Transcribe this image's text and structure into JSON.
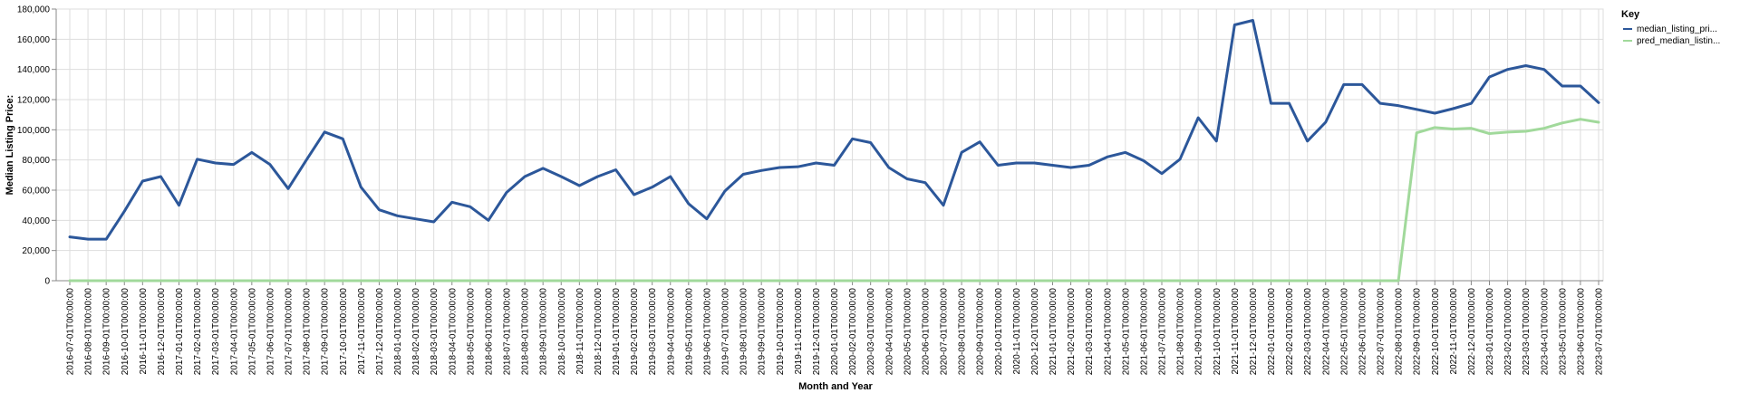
{
  "chart_data": {
    "type": "line",
    "xlabel": "Month and Year",
    "ylabel": "Median Listing Price:",
    "ylim": [
      0,
      180000
    ],
    "yticks": [
      "0",
      "20,000",
      "40,000",
      "60,000",
      "80,000",
      "100,000",
      "120,000",
      "140,000",
      "160,000",
      "180,000"
    ],
    "grid": true,
    "legend": {
      "title": "Key",
      "placement": "right"
    },
    "x": [
      "2016-07-01T00:00:00",
      "2016-08-01T00:00:00",
      "2016-09-01T00:00:00",
      "2016-10-01T00:00:00",
      "2016-11-01T00:00:00",
      "2016-12-01T00:00:00",
      "2017-01-01T00:00:00",
      "2017-02-01T00:00:00",
      "2017-03-01T00:00:00",
      "2017-04-01T00:00:00",
      "2017-05-01T00:00:00",
      "2017-06-01T00:00:00",
      "2017-07-01T00:00:00",
      "2017-08-01T00:00:00",
      "2017-09-01T00:00:00",
      "2017-10-01T00:00:00",
      "2017-11-01T00:00:00",
      "2017-12-01T00:00:00",
      "2018-01-01T00:00:00",
      "2018-02-01T00:00:00",
      "2018-03-01T00:00:00",
      "2018-04-01T00:00:00",
      "2018-05-01T00:00:00",
      "2018-06-01T00:00:00",
      "2018-07-01T00:00:00",
      "2018-08-01T00:00:00",
      "2018-09-01T00:00:00",
      "2018-10-01T00:00:00",
      "2018-11-01T00:00:00",
      "2018-12-01T00:00:00",
      "2019-01-01T00:00:00",
      "2019-02-01T00:00:00",
      "2019-03-01T00:00:00",
      "2019-04-01T00:00:00",
      "2019-05-01T00:00:00",
      "2019-06-01T00:00:00",
      "2019-07-01T00:00:00",
      "2019-08-01T00:00:00",
      "2019-09-01T00:00:00",
      "2019-10-01T00:00:00",
      "2019-11-01T00:00:00",
      "2019-12-01T00:00:00",
      "2020-01-01T00:00:00",
      "2020-02-01T00:00:00",
      "2020-03-01T00:00:00",
      "2020-04-01T00:00:00",
      "2020-05-01T00:00:00",
      "2020-06-01T00:00:00",
      "2020-07-01T00:00:00",
      "2020-08-01T00:00:00",
      "2020-09-01T00:00:00",
      "2020-10-01T00:00:00",
      "2020-11-01T00:00:00",
      "2020-12-01T00:00:00",
      "2021-01-01T00:00:00",
      "2021-02-01T00:00:00",
      "2021-03-01T00:00:00",
      "2021-04-01T00:00:00",
      "2021-05-01T00:00:00",
      "2021-06-01T00:00:00",
      "2021-07-01T00:00:00",
      "2021-08-01T00:00:00",
      "2021-09-01T00:00:00",
      "2021-10-01T00:00:00",
      "2021-11-01T00:00:00",
      "2021-12-01T00:00:00",
      "2022-01-01T00:00:00",
      "2022-02-01T00:00:00",
      "2022-03-01T00:00:00",
      "2022-04-01T00:00:00",
      "2022-05-01T00:00:00",
      "2022-06-01T00:00:00",
      "2022-07-01T00:00:00",
      "2022-08-01T00:00:00",
      "2022-09-01T00:00:00",
      "2022-10-01T00:00:00",
      "2022-11-01T00:00:00",
      "2022-12-01T00:00:00",
      "2023-01-01T00:00:00",
      "2023-02-01T00:00:00",
      "2023-03-01T00:00:00",
      "2023-04-01T00:00:00",
      "2023-05-01T00:00:00",
      "2023-06-01T00:00:00",
      "2023-07-01T00:00:00"
    ],
    "series": [
      {
        "name": "median_listing_pri...",
        "color": "#2c579a",
        "values": [
          29000,
          27500,
          27500,
          46000,
          66000,
          69000,
          50000,
          80500,
          78000,
          77000,
          85000,
          77000,
          61000,
          80000,
          98500,
          94000,
          62000,
          47000,
          43000,
          41000,
          39000,
          52000,
          49000,
          40000,
          58500,
          69000,
          74500,
          69000,
          63000,
          69000,
          73500,
          57000,
          62000,
          69000,
          51000,
          41000,
          59500,
          70500,
          73000,
          75000,
          75500,
          78000,
          76500,
          94000,
          91500,
          75000,
          67500,
          65000,
          50000,
          85000,
          92000,
          76500,
          78000,
          78000,
          76500,
          75000,
          76500,
          82000,
          85000,
          79500,
          71000,
          80500,
          108000,
          92500,
          169500,
          172500,
          117500,
          117500,
          92500,
          105000,
          130000,
          130000,
          117500,
          116000,
          113500,
          111000,
          114000,
          117500,
          135000,
          140000,
          142500,
          140000,
          129000,
          129000,
          118000
        ]
      },
      {
        "name": "pred_median_listin...",
        "color": "#a1d99b",
        "values": [
          0,
          0,
          0,
          0,
          0,
          0,
          0,
          0,
          0,
          0,
          0,
          0,
          0,
          0,
          0,
          0,
          0,
          0,
          0,
          0,
          0,
          0,
          0,
          0,
          0,
          0,
          0,
          0,
          0,
          0,
          0,
          0,
          0,
          0,
          0,
          0,
          0,
          0,
          0,
          0,
          0,
          0,
          0,
          0,
          0,
          0,
          0,
          0,
          0,
          0,
          0,
          0,
          0,
          0,
          0,
          0,
          0,
          0,
          0,
          0,
          0,
          0,
          0,
          0,
          0,
          0,
          0,
          0,
          0,
          0,
          0,
          0,
          0,
          0,
          98000,
          101500,
          100500,
          101000,
          97500,
          98500,
          99000,
          101000,
          104500,
          107000,
          105000
        ]
      }
    ]
  }
}
